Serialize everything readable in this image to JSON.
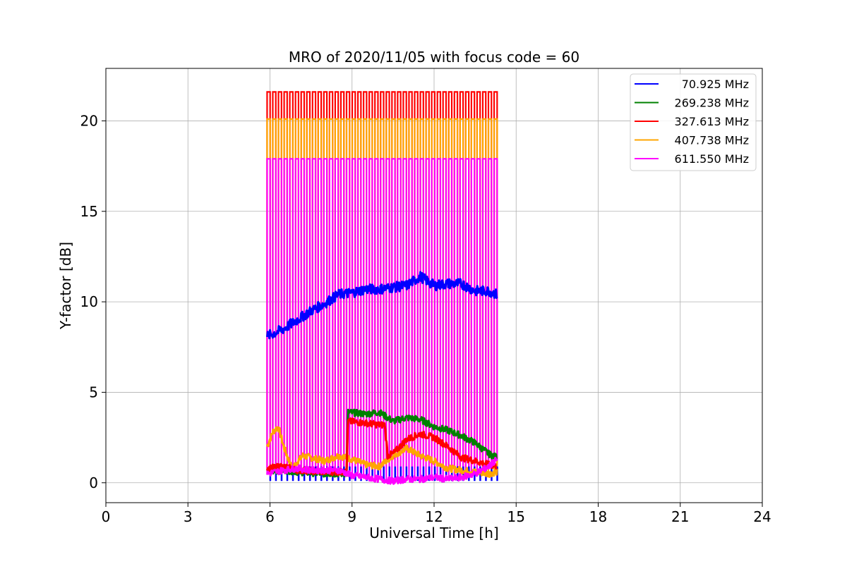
{
  "chart_data": {
    "type": "line",
    "title": "MRO of 2020/11/05 with focus code = 60",
    "xlabel": "Universal Time [h]",
    "ylabel": "Y-factor [dB]",
    "xlim": [
      0,
      24
    ],
    "ylim": [
      -1.1,
      22.9
    ],
    "xticks": [
      0,
      3,
      6,
      9,
      12,
      15,
      18,
      21,
      24
    ],
    "yticks": [
      0,
      5,
      10,
      15,
      20
    ],
    "grid": true,
    "legend_position": "top-right",
    "observation_window_h": [
      5.9,
      14.3
    ],
    "pulse_count": 41,
    "series": [
      {
        "name": "70.925 MHz",
        "color": "#0000ff",
        "baseline": {
          "x": [
            5.9,
            6.5,
            7.0,
            7.5,
            8.0,
            8.5,
            9.0,
            9.5,
            10.0,
            10.5,
            11.0,
            11.5,
            12.0,
            12.5,
            13.0,
            13.5,
            14.0,
            14.3
          ],
          "y": [
            8.1,
            8.5,
            9.0,
            9.5,
            9.9,
            10.4,
            10.5,
            10.7,
            10.7,
            10.8,
            10.9,
            11.4,
            10.9,
            11.0,
            11.0,
            10.6,
            10.6,
            10.4
          ]
        },
        "pulse_low": 0.1
      },
      {
        "name": "269.238 MHz",
        "color": "#008000",
        "baseline": {
          "x": [
            5.9,
            6.5,
            7.0,
            8.0,
            8.8,
            8.85,
            9.5,
            10.0,
            10.5,
            11.0,
            11.5,
            12.0,
            12.5,
            13.0,
            13.5,
            14.0,
            14.3
          ],
          "y": [
            0.6,
            0.7,
            0.6,
            0.5,
            0.5,
            3.9,
            3.8,
            3.9,
            3.4,
            3.6,
            3.5,
            3.1,
            2.9,
            2.6,
            2.2,
            1.6,
            1.4
          ]
        }
      },
      {
        "name": "327.613 MHz",
        "color": "#ff0000",
        "baseline": {
          "x": [
            5.9,
            6.5,
            7.0,
            8.0,
            8.8,
            8.85,
            9.5,
            10.0,
            10.2,
            10.3,
            10.5,
            11.0,
            11.5,
            12.0,
            12.5,
            13.0,
            13.5,
            14.0,
            14.3
          ],
          "y": [
            0.8,
            0.9,
            0.7,
            0.6,
            0.6,
            3.4,
            3.3,
            3.2,
            3.2,
            1.5,
            1.6,
            2.4,
            2.7,
            2.5,
            2.0,
            1.4,
            1.2,
            1.0,
            0.9
          ]
        },
        "pulse_high": 21.6
      },
      {
        "name": "407.738 MHz",
        "color": "#ffa500",
        "baseline": {
          "x": [
            5.9,
            6.1,
            6.3,
            6.5,
            6.8,
            7.2,
            8.0,
            8.5,
            9.0,
            9.5,
            10.0,
            10.5,
            11.0,
            11.5,
            12.0,
            12.5,
            13.0,
            13.5,
            14.0,
            14.3
          ],
          "y": [
            2.0,
            2.8,
            3.1,
            2.0,
            0.8,
            1.5,
            1.2,
            1.5,
            1.3,
            1.0,
            0.9,
            1.5,
            1.9,
            1.5,
            1.2,
            0.8,
            0.7,
            0.6,
            0.5,
            0.6
          ]
        },
        "pulse_high": 20.1
      },
      {
        "name": "611.550 MHz",
        "color": "#ff00ff",
        "baseline": {
          "x": [
            5.9,
            6.5,
            7.0,
            7.5,
            8.0,
            8.5,
            9.0,
            9.5,
            10.0,
            10.5,
            11.0,
            11.5,
            12.0,
            12.5,
            13.0,
            13.5,
            14.0,
            14.3
          ],
          "y": [
            0.5,
            0.7,
            0.8,
            0.7,
            0.7,
            0.7,
            0.4,
            0.3,
            0.2,
            0.1,
            0.2,
            0.2,
            0.3,
            0.2,
            0.3,
            0.5,
            0.9,
            1.3
          ]
        },
        "pulse_high": 17.9
      }
    ]
  }
}
